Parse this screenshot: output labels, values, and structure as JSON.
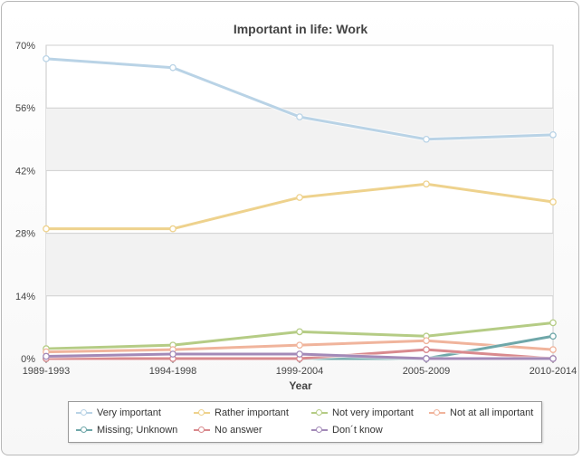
{
  "chart_data": {
    "type": "line",
    "title": "Important in life: Work",
    "xlabel": "Year",
    "ylabel": "",
    "categories": [
      "1989-1993",
      "1994-1998",
      "1999-2004",
      "2005-2009",
      "2010-2014"
    ],
    "y_ticks": [
      "0%",
      "14%",
      "28%",
      "42%",
      "56%",
      "70%"
    ],
    "ylim": [
      0,
      70
    ],
    "grid": true,
    "legend_position": "bottom",
    "series": [
      {
        "name": "Very important",
        "color": "#b9d3e6",
        "values": [
          67,
          65,
          54,
          49,
          50
        ]
      },
      {
        "name": "Rather important",
        "color": "#eed28d",
        "values": [
          29,
          29,
          36,
          39,
          35
        ]
      },
      {
        "name": "Not very important",
        "color": "#b5cc85",
        "values": [
          2.2,
          3,
          6,
          5,
          8
        ]
      },
      {
        "name": "Not at all important",
        "color": "#f0b49c",
        "values": [
          1.5,
          2,
          3,
          4,
          2
        ]
      },
      {
        "name": "Missing; Unknown",
        "color": "#6fa7a9",
        "values": [
          0,
          0,
          0,
          0,
          5
        ]
      },
      {
        "name": "No answer",
        "color": "#d98a8e",
        "values": [
          0,
          0,
          0,
          2,
          0
        ]
      },
      {
        "name": "Don´t know",
        "color": "#a38ab8",
        "values": [
          0.5,
          1,
          1,
          0,
          0
        ]
      }
    ]
  }
}
